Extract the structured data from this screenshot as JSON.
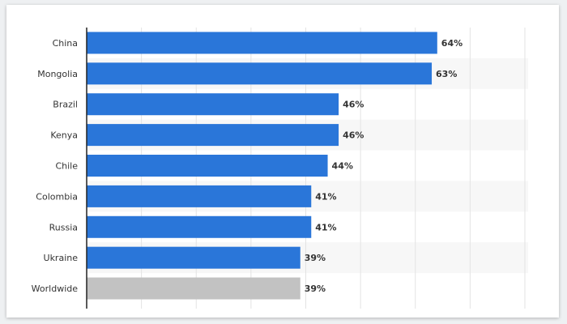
{
  "chart_data": {
    "type": "bar",
    "orientation": "horizontal",
    "categories": [
      "China",
      "Mongolia",
      "Brazil",
      "Kenya",
      "Chile",
      "Colombia",
      "Russia",
      "Ukraine",
      "Worldwide"
    ],
    "values": [
      64,
      63,
      46,
      46,
      44,
      41,
      41,
      39,
      39
    ],
    "value_labels": [
      "64%",
      "63%",
      "46%",
      "46%",
      "44%",
      "41%",
      "41%",
      "39%",
      "39%"
    ],
    "unit": "%",
    "xlim": [
      0,
      80
    ],
    "grid": true,
    "colors": {
      "bar": "#2a76d9",
      "highlight_bar": "#c2c2c2",
      "alt_row": "#f7f7f7",
      "grid": "#e3e3e3",
      "axis": "#222222"
    },
    "highlight_category": "Worldwide"
  }
}
